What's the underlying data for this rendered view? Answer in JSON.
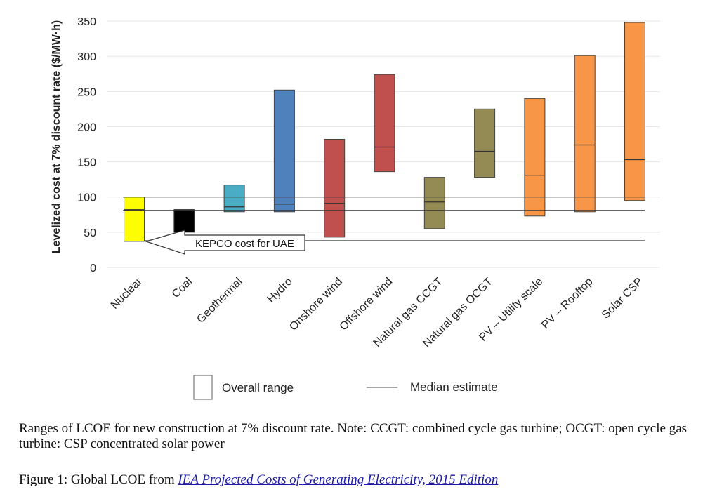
{
  "chart_data": {
    "type": "bar",
    "ylabel": "Levelized cost at 7% discount rate ($/MW·h)",
    "ylim": [
      0,
      350
    ],
    "yticks": [
      0,
      50,
      100,
      150,
      200,
      250,
      300,
      350
    ],
    "grid": true,
    "categories": [
      "Nuclear",
      "Coal",
      "Geothermal",
      "Hydro",
      "Onshore wind",
      "Offshore wind",
      "Natural gas CCGT",
      "Natural gas OCGT",
      "PV – Utility scale",
      "PV – Rooftop",
      "Solar CSP"
    ],
    "ranges": [
      {
        "low": 37,
        "high": 100,
        "median": 82,
        "color": "#ffff00"
      },
      {
        "low": 50,
        "high": 82,
        "median": 82,
        "color": "#000000"
      },
      {
        "low": 79,
        "high": 117,
        "median": 86,
        "color": "#4bacc6"
      },
      {
        "low": 79,
        "high": 252,
        "median": 90,
        "color": "#4f81bd"
      },
      {
        "low": 43,
        "high": 182,
        "median": 91,
        "color": "#c0504d"
      },
      {
        "low": 136,
        "high": 274,
        "median": 171,
        "color": "#c0504d"
      },
      {
        "low": 55,
        "high": 128,
        "median": 93,
        "color": "#948a54"
      },
      {
        "low": 128,
        "high": 225,
        "median": 165,
        "color": "#948a54"
      },
      {
        "low": 73,
        "high": 240,
        "median": 131,
        "color": "#f79646"
      },
      {
        "low": 79,
        "high": 301,
        "median": 174,
        "color": "#f79646"
      },
      {
        "low": 95,
        "high": 348,
        "median": 153,
        "color": "#f79646"
      }
    ],
    "reference_lines": [
      100,
      81,
      38
    ],
    "annotation": "KEPCO cost for UAE",
    "legend": {
      "range_label": "Overall range",
      "median_label": "Median estimate",
      "placement": "bottom"
    }
  },
  "caption": {
    "note": "Ranges of LCOE for new construction at 7% discount rate. Note: CCGT: combined cycle gas turbine; OCGT: open cycle gas turbine: CSP concentrated solar power",
    "figure_prefix": "Figure 1: Global LCOE from ",
    "figure_link": "IEA Projected Costs of Generating Electricity, 2015 Edition"
  }
}
